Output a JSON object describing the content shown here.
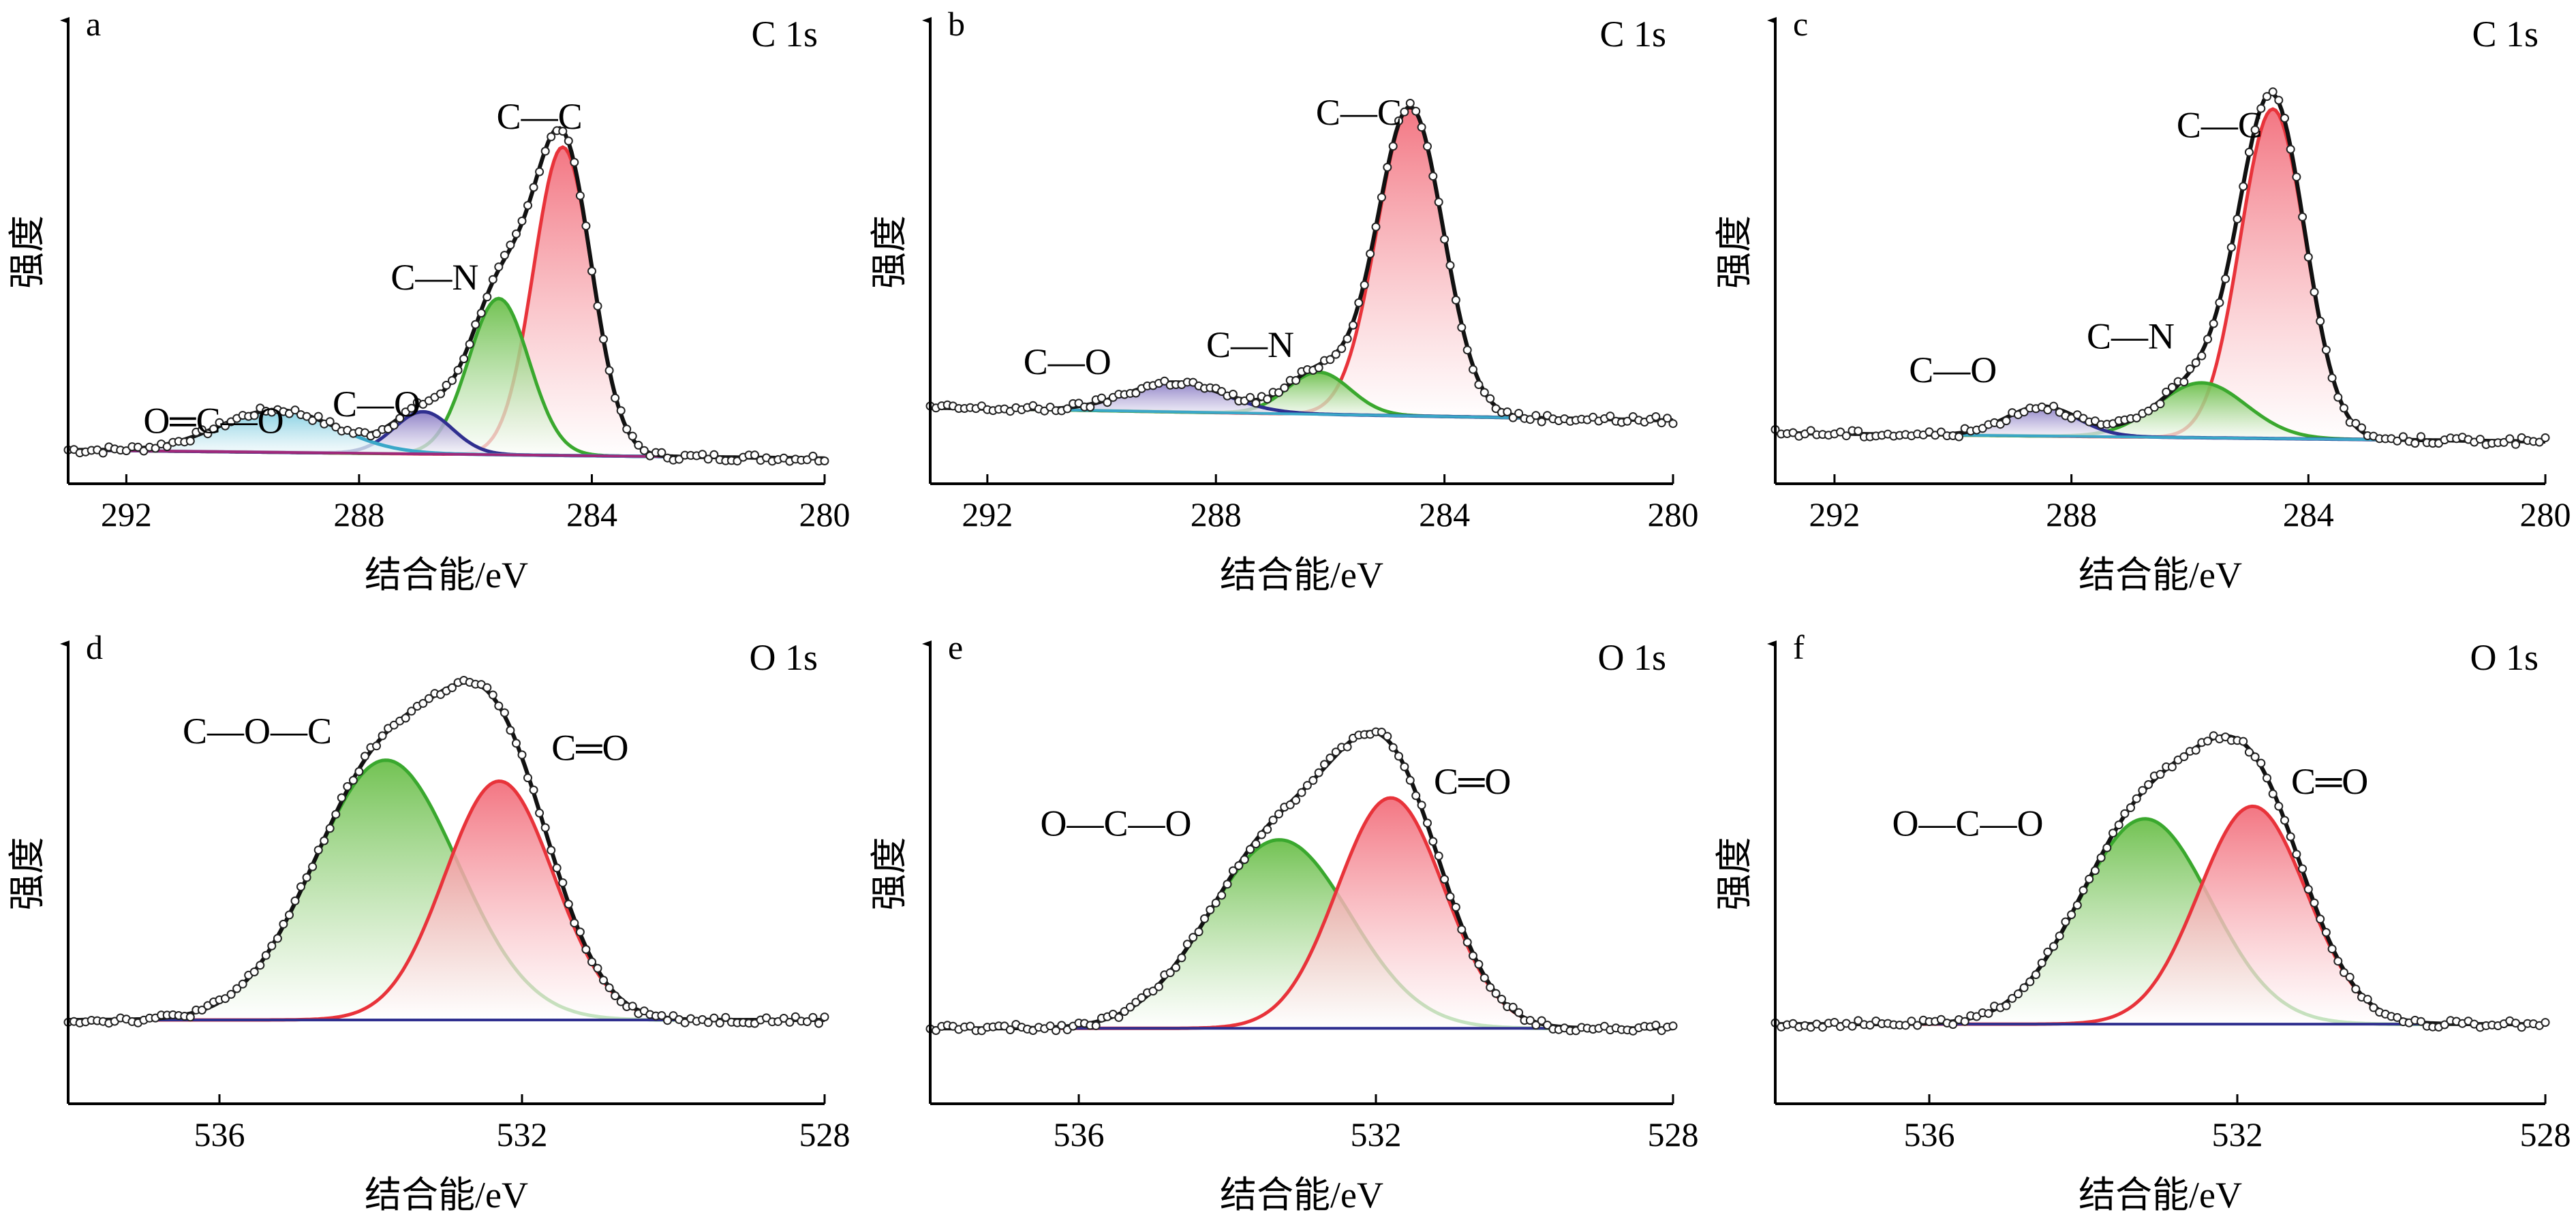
{
  "chart_data": [
    {
      "type": "line",
      "panel": "a",
      "core_level": "C 1s",
      "xlabel": "结合能/eV",
      "ylabel": "强度",
      "xlim": [
        293.0,
        280.0
      ],
      "x_ticks": [
        292,
        288,
        284,
        280
      ],
      "y_range": [
        0,
        1.0
      ],
      "grid": false,
      "raw_data": true,
      "baseline": [
        0.08,
        0.06
      ],
      "peaks": [
        {
          "label": "C—C",
          "center": 284.5,
          "height": 0.73,
          "sigma": 0.5,
          "color": "#e8333a",
          "fill_top": "#f26f7c"
        },
        {
          "label": "C—N",
          "center": 285.6,
          "height": 0.37,
          "sigma": 0.52,
          "color": "#3aa82e",
          "fill_top": "#6bbf4a"
        },
        {
          "label": "C—O",
          "center": 286.9,
          "height": 0.1,
          "sigma": 0.5,
          "color": "#2f2f8f",
          "fill_top": "#8a7cc4"
        },
        {
          "label": "O═C—O",
          "center": 289.4,
          "height": 0.1,
          "sigma": 1.0,
          "color": "#3aa7c8",
          "fill_top": "#7fcde0"
        }
      ],
      "label_spots": [
        [
          284.9,
          0.84
        ],
        [
          286.7,
          0.46
        ],
        [
          287.7,
          0.16
        ],
        [
          290.5,
          0.12
        ]
      ],
      "baseline_color": "#a0287a"
    },
    {
      "type": "line",
      "panel": "b",
      "core_level": "C 1s",
      "xlabel": "结合能/eV",
      "ylabel": "强度",
      "xlim": [
        293.0,
        280.0
      ],
      "x_ticks": [
        292,
        288,
        284,
        280
      ],
      "y_range": [
        0,
        1.0
      ],
      "grid": false,
      "raw_data": true,
      "baseline": [
        0.18,
        0.15
      ],
      "peaks": [
        {
          "label": "C—C",
          "center": 284.6,
          "height": 0.73,
          "sigma": 0.58,
          "color": "#e8333a",
          "fill_top": "#f26f7c"
        },
        {
          "label": "C—N",
          "center": 286.2,
          "height": 0.1,
          "sigma": 0.55,
          "color": "#3aa82e",
          "fill_top": "#6bbf4a"
        },
        {
          "label": "C—O",
          "center": 288.7,
          "height": 0.07,
          "sigma": 0.85,
          "color": "#2f2f8f",
          "fill_top": "#8a7cc4"
        }
      ],
      "label_spots": [
        [
          285.5,
          0.85
        ],
        [
          287.4,
          0.3
        ],
        [
          290.6,
          0.26
        ]
      ],
      "baseline_color": "#3aa7c8"
    },
    {
      "type": "line",
      "panel": "c",
      "core_level": "C 1s",
      "xlabel": "结合能/eV",
      "ylabel": "强度",
      "xlim": [
        293.0,
        280.0
      ],
      "x_ticks": [
        292,
        288,
        284,
        280
      ],
      "y_range": [
        0,
        1.0
      ],
      "grid": false,
      "raw_data": true,
      "baseline": [
        0.12,
        0.1
      ],
      "peaks": [
        {
          "label": "C—C",
          "center": 284.6,
          "height": 0.78,
          "sigma": 0.55,
          "color": "#e8333a",
          "fill_top": "#f26f7c"
        },
        {
          "label": "C—N",
          "center": 285.8,
          "height": 0.13,
          "sigma": 0.75,
          "color": "#3aa82e",
          "fill_top": "#6bbf4a"
        },
        {
          "label": "C—O",
          "center": 288.5,
          "height": 0.07,
          "sigma": 0.6,
          "color": "#2f2f8f",
          "fill_top": "#8a7cc4"
        }
      ],
      "label_spots": [
        [
          285.5,
          0.82
        ],
        [
          287.0,
          0.32
        ],
        [
          290.0,
          0.24
        ]
      ],
      "baseline_color": "#3aa7c8"
    },
    {
      "type": "line",
      "panel": "d",
      "core_level": "O 1s",
      "xlabel": "结合能/eV",
      "ylabel": "强度",
      "xlim": [
        538.0,
        528.0
      ],
      "x_ticks": [
        536,
        532,
        528
      ],
      "y_range": [
        0,
        1.0
      ],
      "grid": false,
      "raw_data": true,
      "baseline": [
        0.2,
        0.2
      ],
      "peaks": [
        {
          "label": "C—O—C",
          "center": 533.8,
          "height": 0.62,
          "sigma": 0.95,
          "color": "#3aa82e",
          "fill_top": "#6bbf4a"
        },
        {
          "label": "C═O",
          "center": 532.3,
          "height": 0.57,
          "sigma": 0.72,
          "color": "#e8333a",
          "fill_top": "#f26f7c"
        }
      ],
      "label_spots": [
        [
          535.5,
          0.86
        ],
        [
          531.1,
          0.82
        ]
      ],
      "baseline_color": "#2f2f8f"
    },
    {
      "type": "line",
      "panel": "e",
      "core_level": "O 1s",
      "xlabel": "结合能/eV",
      "ylabel": "强度",
      "xlim": [
        538.0,
        528.0
      ],
      "x_ticks": [
        536,
        532,
        528
      ],
      "y_range": [
        0,
        1.0
      ],
      "grid": false,
      "raw_data": true,
      "baseline": [
        0.18,
        0.18
      ],
      "peaks": [
        {
          "label": "O—C—O",
          "center": 533.3,
          "height": 0.45,
          "sigma": 0.95,
          "color": "#3aa82e",
          "fill_top": "#6bbf4a"
        },
        {
          "label": "C═O",
          "center": 531.8,
          "height": 0.55,
          "sigma": 0.72,
          "color": "#e8333a",
          "fill_top": "#f26f7c"
        }
      ],
      "label_spots": [
        [
          535.5,
          0.64
        ],
        [
          530.7,
          0.74
        ]
      ],
      "baseline_color": "#2f2f8f"
    },
    {
      "type": "line",
      "panel": "f",
      "core_level": "O 1s",
      "xlabel": "结合能/eV",
      "ylabel": "强度",
      "xlim": [
        538.0,
        528.0
      ],
      "x_ticks": [
        536,
        532,
        528
      ],
      "y_range": [
        0,
        1.0
      ],
      "grid": false,
      "raw_data": true,
      "baseline": [
        0.19,
        0.19
      ],
      "peaks": [
        {
          "label": "O—C—O",
          "center": 533.2,
          "height": 0.49,
          "sigma": 0.85,
          "color": "#3aa82e",
          "fill_top": "#6bbf4a"
        },
        {
          "label": "C═O",
          "center": 531.8,
          "height": 0.52,
          "sigma": 0.7,
          "color": "#e8333a",
          "fill_top": "#f26f7c"
        }
      ],
      "label_spots": [
        [
          535.5,
          0.64
        ],
        [
          530.8,
          0.74
        ]
      ],
      "baseline_color": "#2f2f8f"
    }
  ]
}
